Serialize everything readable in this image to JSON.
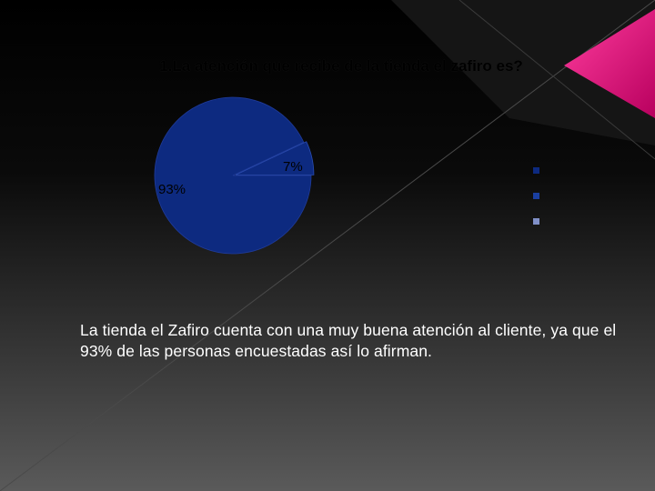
{
  "slide": {
    "caption": "La tienda el Zafiro cuenta con una muy buena atención al cliente, ya que el 93% de las personas encuestadas así lo afirman."
  },
  "colors": {
    "pie_fill": "#0d2a80",
    "legend_1": "#0d2a80",
    "legend_2": "#1a3fa0",
    "legend_3": "#8090c8",
    "accent": "#e8157a"
  },
  "chart_data": {
    "type": "pie",
    "title": "1.La atención que recibe de la tienda el zafiro es?",
    "slices": [
      {
        "label": "93%",
        "value": 93
      },
      {
        "label": "7%",
        "value": 7
      }
    ],
    "legend": {
      "placement": "right",
      "entries": [
        "",
        "",
        ""
      ]
    }
  }
}
